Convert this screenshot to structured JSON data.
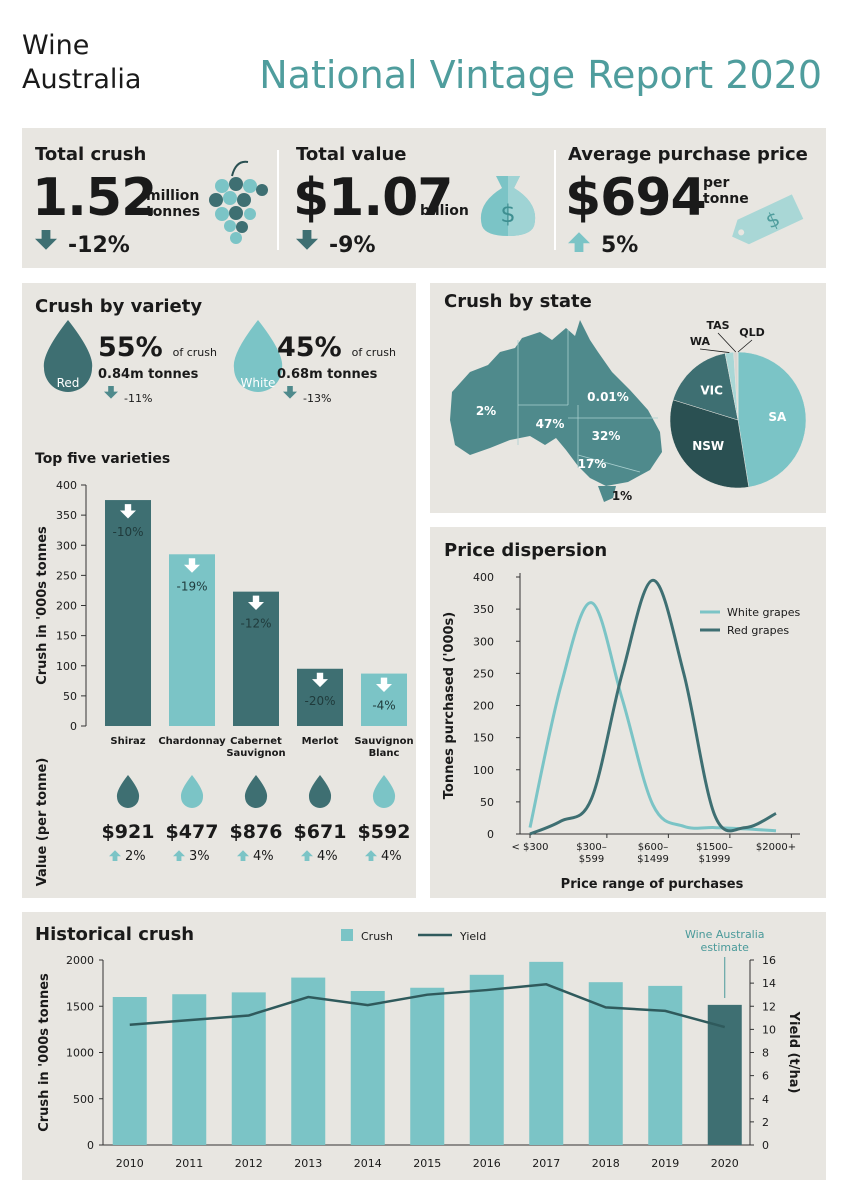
{
  "header": {
    "brand": [
      "Wine",
      "Australia"
    ],
    "title": "National Vintage Report 2020"
  },
  "kpis": [
    {
      "label": "Total crush",
      "value": "1.52",
      "unit": [
        "million",
        "tonnes"
      ],
      "change": "-12%"
    },
    {
      "label": "Total value",
      "value": "$1.07",
      "unit": [
        "billion"
      ],
      "change": "-9%"
    },
    {
      "label": "Average purchase price",
      "value": "$694",
      "unit": [
        "per",
        "tonne"
      ],
      "change": "5%"
    }
  ],
  "variety": {
    "title": "Crush by variety",
    "items": [
      {
        "name": "Red",
        "share": "55%",
        "share_note": "of crush",
        "tonnes": "0.84m tonnes",
        "change": "-11%"
      },
      {
        "name": "White",
        "share": "45%",
        "share_note": "of crush",
        "tonnes": "0.68m tonnes",
        "change": "-13%"
      }
    ]
  },
  "chart_data": [
    {
      "type": "bar",
      "title": "Top five varieties",
      "y_label": "Crush in '000s tonnes",
      "categories": [
        "Shiraz",
        "Chardonnay",
        "Cabernet Sauvignon",
        "Merlot",
        "Sauvignon Blanc"
      ],
      "values": [
        375,
        285,
        223,
        95,
        87
      ],
      "colors": [
        "#3e6f72",
        "#7bc4c6",
        "#3e6f72",
        "#3e6f72",
        "#7bc4c6"
      ],
      "change_labels": [
        "-10%",
        "-19%",
        "-12%",
        "-20%",
        "-4%"
      ],
      "ylim": [
        0,
        400
      ],
      "yticks": [
        0,
        50,
        100,
        150,
        200,
        250,
        300,
        350,
        400
      ],
      "value_per_tonne": {
        "label": "Value (per tonne)",
        "prices": [
          "$921",
          "$477",
          "$876",
          "$671",
          "$592"
        ],
        "changes": [
          "2%",
          "3%",
          "4%",
          "4%",
          "4%"
        ]
      }
    },
    {
      "type": "pie",
      "title": "Crush by state",
      "categories": [
        "SA",
        "NSW",
        "VIC",
        "WA",
        "TAS",
        "QLD"
      ],
      "values": [
        47,
        32,
        17,
        2,
        1,
        0.01
      ],
      "value_labels": [
        "47%",
        "32%",
        "17%",
        "2%",
        "1%",
        "0.01%"
      ],
      "colors": [
        "#7bc4c6",
        "#2a5052",
        "#3e6f72",
        "#a9d7d6",
        "#d9d7d2",
        "#ffffff"
      ]
    },
    {
      "type": "line",
      "title": "Price dispersion",
      "x_label": "Price range of purchases",
      "y_label": "Tonnes purchased ('000s)",
      "categories": [
        "< $300",
        null,
        "$300–$599",
        null,
        "$600–$1499",
        null,
        "$1500–$1999",
        null,
        "$2000+"
      ],
      "series": [
        {
          "name": "White grapes",
          "color": "#7bc4c6",
          "values": [
            10,
            230,
            360,
            210,
            45,
            12,
            10,
            8,
            5
          ]
        },
        {
          "name": "Red grapes",
          "color": "#3e6f72",
          "values": [
            0,
            20,
            55,
            250,
            395,
            250,
            30,
            10,
            32
          ]
        }
      ],
      "ylim": [
        0,
        400
      ],
      "yticks": [
        0,
        50,
        100,
        150,
        200,
        250,
        300,
        350,
        400
      ]
    },
    {
      "type": "bar_line",
      "title": "Historical crush",
      "y_label": "Crush in '000s tonnes",
      "y2_label": "Yield (t/ha)",
      "annotation": "Wine Australia estimate",
      "categories": [
        "2010",
        "2011",
        "2012",
        "2013",
        "2014",
        "2015",
        "2016",
        "2017",
        "2018",
        "2019",
        "2020"
      ],
      "series": [
        {
          "name": "Crush",
          "color": "#7bc4c6",
          "colors": [
            "#7bc4c6",
            "#7bc4c6",
            "#7bc4c6",
            "#7bc4c6",
            "#7bc4c6",
            "#7bc4c6",
            "#7bc4c6",
            "#7bc4c6",
            "#7bc4c6",
            "#7bc4c6",
            "#3e6f72"
          ],
          "values": [
            1600,
            1630,
            1650,
            1810,
            1665,
            1700,
            1840,
            1980,
            1760,
            1720,
            1515
          ]
        },
        {
          "name": "Yield",
          "color": "#2f5a5c",
          "axis": "y2",
          "values": [
            10.4,
            10.8,
            11.2,
            12.8,
            12.1,
            13.0,
            13.4,
            13.9,
            11.9,
            11.6,
            10.2
          ]
        }
      ],
      "ylim": [
        0,
        2000
      ],
      "yticks": [
        0,
        500,
        1000,
        1500,
        2000
      ],
      "y2lim": [
        0,
        16
      ],
      "y2ticks": [
        0,
        2,
        4,
        6,
        8,
        10,
        12,
        14,
        16
      ]
    }
  ]
}
